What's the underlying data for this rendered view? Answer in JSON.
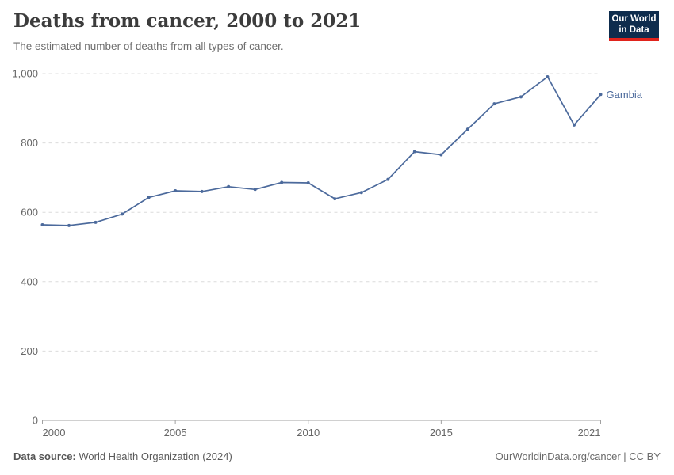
{
  "header": {
    "title": "Deaths from cancer, 2000 to 2021",
    "subtitle": "The estimated number of deaths from all types of cancer."
  },
  "logo": {
    "line1": "Our World",
    "line2": "in Data",
    "bg_color": "#0E2C4D",
    "accent_color": "#E0231C",
    "text_color": "#FFFFFF"
  },
  "chart_data": {
    "type": "line",
    "title": "Deaths from cancer, 2000 to 2021",
    "subtitle": "The estimated number of deaths from all types of cancer.",
    "xlabel": "",
    "ylabel": "",
    "xlim": [
      2000,
      2021
    ],
    "ylim": [
      0,
      1000
    ],
    "grid": "horizontal-dashed",
    "legend_position": "end-of-line-label",
    "x": [
      2000,
      2001,
      2002,
      2003,
      2004,
      2005,
      2006,
      2007,
      2008,
      2009,
      2010,
      2011,
      2012,
      2013,
      2014,
      2015,
      2016,
      2017,
      2018,
      2019,
      2020,
      2021
    ],
    "series": [
      {
        "name": "Gambia",
        "color": "#4C6A9C",
        "values": [
          564,
          562,
          571,
          595,
          643,
          662,
          660,
          674,
          666,
          686,
          685,
          639,
          657,
          695,
          775,
          766,
          840,
          913,
          933,
          991,
          852,
          940
        ]
      }
    ],
    "yticks": [
      {
        "value": 0,
        "label": "0"
      },
      {
        "value": 200,
        "label": "200"
      },
      {
        "value": 400,
        "label": "400"
      },
      {
        "value": 600,
        "label": "600"
      },
      {
        "value": 800,
        "label": "800"
      },
      {
        "value": 1000,
        "label": "1,000"
      }
    ],
    "xticks": [
      {
        "value": 2000,
        "label": "2000",
        "align": "start"
      },
      {
        "value": 2005,
        "label": "2005",
        "align": "middle"
      },
      {
        "value": 2010,
        "label": "2010",
        "align": "middle"
      },
      {
        "value": 2015,
        "label": "2015",
        "align": "middle"
      },
      {
        "value": 2021,
        "label": "2021",
        "align": "end"
      }
    ],
    "colors": {
      "gridline": "#dcdcdc",
      "axis_line": "#a1a1a1",
      "tick_label": "#666666"
    }
  },
  "footer": {
    "source_label": "Data source:",
    "source_value": " World Health Organization (2024)",
    "credit": "OurWorldinData.org/cancer | CC BY"
  }
}
